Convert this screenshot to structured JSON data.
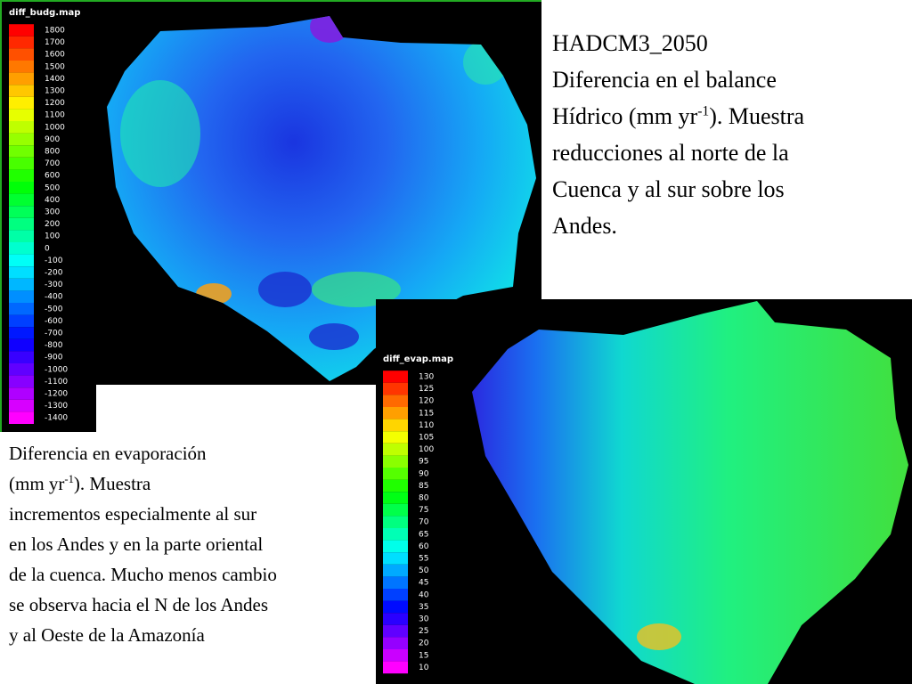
{
  "top_map": {
    "title": "diff_budg.map",
    "scale": [
      1800,
      1700,
      1600,
      1500,
      1400,
      1300,
      1200,
      1100,
      1000,
      900,
      800,
      700,
      600,
      500,
      400,
      300,
      200,
      100,
      0,
      -100,
      -200,
      -300,
      -400,
      -500,
      -600,
      -700,
      -800,
      -900,
      -1000,
      -1100,
      -1200,
      -1300,
      -1400
    ]
  },
  "bottom_map": {
    "title": "diff_evap.map",
    "scale": [
      130,
      125,
      120,
      115,
      110,
      105,
      100,
      95,
      90,
      85,
      80,
      75,
      70,
      65,
      60,
      55,
      50,
      45,
      40,
      35,
      30,
      25,
      20,
      15,
      10
    ]
  },
  "top_note": {
    "line1": "HADCM3_2050",
    "line2": "Diferencia en el balance",
    "line3_before": "Hídrico (mm yr",
    "line3_sup": "-1",
    "line3_after": "). Muestra",
    "line4": "reducciones al norte de la",
    "line5": "Cuenca y al sur sobre los",
    "line6": "Andes."
  },
  "bottom_note": {
    "line1": "Diferencia en evaporación",
    "line2_before": "(mm yr",
    "line2_sup": "-1",
    "line2_after": "). Muestra",
    "line3": "incrementos especialmente al sur",
    "line4": "en los Andes y en la parte oriental",
    "line5": "de la cuenca. Mucho menos cambio",
    "line6": "se observa hacia el N de los Andes",
    "line7": "y al Oeste de la Amazonía"
  }
}
